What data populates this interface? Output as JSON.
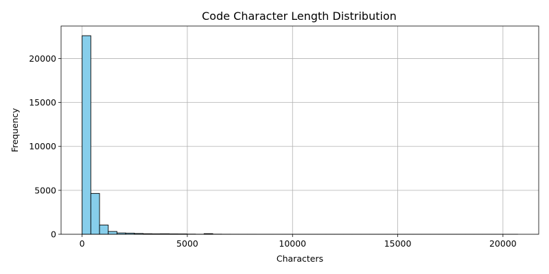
{
  "chart_data": {
    "type": "bar",
    "title": "Code Character Length Distribution",
    "xlabel": "Characters",
    "ylabel": "Frequency",
    "xlim": [
      -1000,
      21700
    ],
    "ylim": [
      0,
      23700
    ],
    "xticks": [
      0,
      5000,
      10000,
      15000,
      20000
    ],
    "yticks": [
      0,
      5000,
      10000,
      15000,
      20000
    ],
    "grid": true,
    "bar_color": "#87ceeb",
    "bin_start": 0,
    "bin_width": 414,
    "values": [
      22600,
      4650,
      1050,
      320,
      150,
      130,
      90,
      60,
      50,
      55,
      45,
      40,
      20,
      8,
      70,
      15,
      8,
      6,
      5,
      5,
      4,
      4,
      3,
      3,
      3,
      3,
      2,
      2,
      2,
      2,
      2,
      2,
      2,
      2,
      2,
      1,
      1,
      1,
      1,
      1,
      1,
      1,
      1,
      1,
      1,
      1,
      1,
      1,
      1,
      1
    ]
  }
}
